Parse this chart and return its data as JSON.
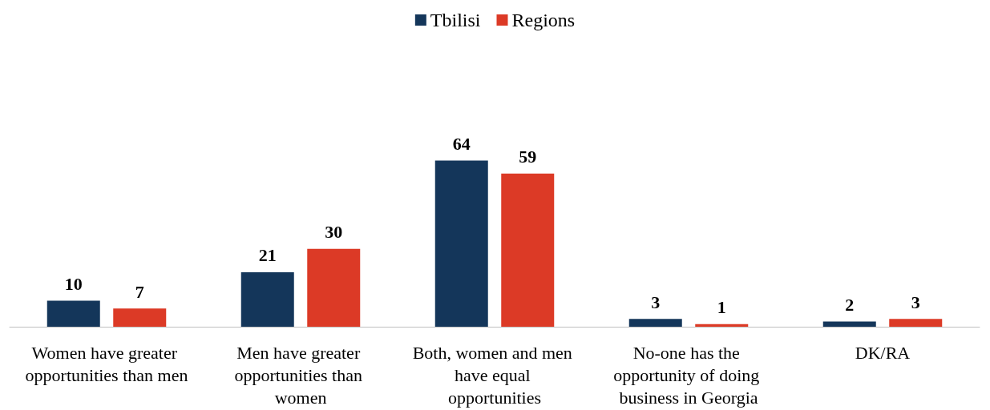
{
  "chart_data": {
    "type": "bar",
    "categories": [
      "Women have greater opportunities than men",
      "Men have greater opportunities than women",
      "Both, women and men have equal opportunities",
      "No-one has the opportunity of doing business in Georgia",
      "DK/RA"
    ],
    "series": [
      {
        "name": "Tbilisi",
        "color": "#14365a",
        "values": [
          10,
          21,
          64,
          3,
          2
        ]
      },
      {
        "name": "Regions",
        "color": "#dc3a26",
        "values": [
          7,
          30,
          59,
          1,
          3
        ]
      }
    ],
    "data_labels": true,
    "legend": "top"
  }
}
